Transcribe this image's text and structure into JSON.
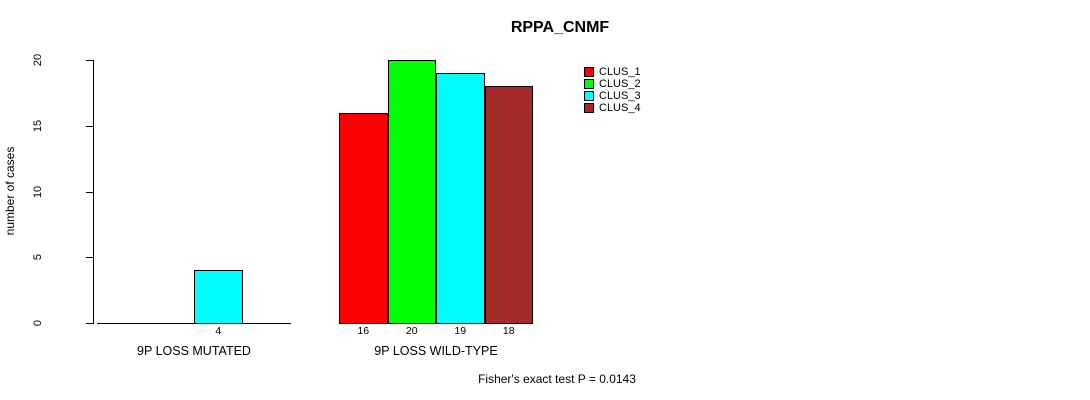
{
  "chart_data": {
    "type": "bar",
    "title": "RPPA_CNMF",
    "ylabel": "number of cases",
    "xlabel": "",
    "ylim": [
      0,
      20
    ],
    "yticks": [
      0,
      5,
      10,
      15,
      20
    ],
    "grid": false,
    "categories": [
      "9P LOSS MUTATED",
      "9P LOSS WILD-TYPE"
    ],
    "series": [
      "CLUS_1",
      "CLUS_2",
      "CLUS_3",
      "CLUS_4"
    ],
    "groups": [
      {
        "category": "9P LOSS MUTATED",
        "values": [
          0,
          0,
          4,
          0
        ]
      },
      {
        "category": "9P LOSS WILD-TYPE",
        "values": [
          16,
          20,
          19,
          18
        ]
      }
    ],
    "legend": {
      "position": "top-right",
      "entries": [
        {
          "name": "CLUS_1",
          "color": "#FF0000"
        },
        {
          "name": "CLUS_2",
          "color": "#00FF00"
        },
        {
          "name": "CLUS_3",
          "color": "#00FFFF"
        },
        {
          "name": "CLUS_4",
          "color": "#A52A2A"
        }
      ]
    },
    "annotation": "Fisher's exact test P = 0.0143",
    "colors": {
      "axis": "#000000",
      "background": "#FFFFFF",
      "text": "#000000"
    }
  }
}
